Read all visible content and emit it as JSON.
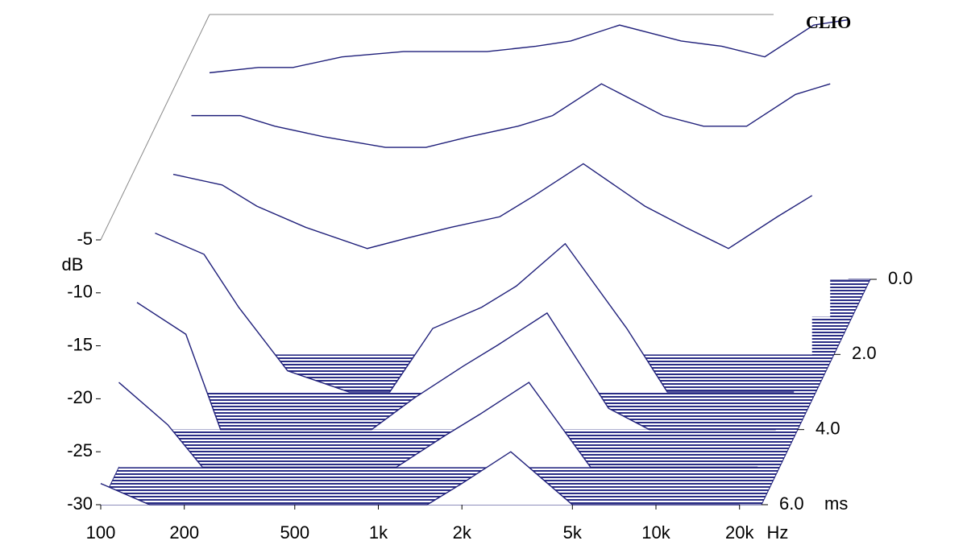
{
  "chart_data": {
    "type": "waterfall",
    "brand": "CLIO",
    "ylabel": "dB",
    "xlabel": "Hz",
    "zlabel": "ms",
    "log_x": true,
    "color": "#1f1f7a",
    "x": [
      100,
      150,
      200,
      300,
      500,
      700,
      1000,
      1500,
      2000,
      3000,
      5000,
      7000,
      10000,
      15000,
      20000
    ],
    "series": [
      {
        "t": 0,
        "values": [
          -10.5,
          -10,
          -10,
          -9,
          -8.5,
          -8.5,
          -8.5,
          -8,
          -7.5,
          -6,
          -7.5,
          -8,
          -9,
          -6,
          -5.5
        ]
      },
      {
        "t": 1,
        "values": [
          -11,
          -11,
          -12,
          -13,
          -14,
          -14,
          -13,
          -12,
          -11,
          -8,
          -11,
          -12,
          -12,
          -9,
          -8
        ]
      },
      {
        "t": 2,
        "values": [
          -13,
          -14,
          -16,
          -18,
          -20,
          -19,
          -18,
          -17,
          -15,
          -12,
          -16,
          -18,
          -20,
          -17,
          -15
        ]
      },
      {
        "t": 3,
        "values": [
          -15,
          -17,
          -22,
          -28,
          -30,
          -30,
          -24,
          -22,
          -20,
          -16,
          -24,
          -30,
          -30,
          -30,
          -30
        ]
      },
      {
        "t": 4,
        "values": [
          -18,
          -21,
          -30,
          -30,
          -30,
          -30,
          -27,
          -24,
          -22,
          -19,
          -28,
          -30,
          -30,
          -30,
          -30
        ]
      },
      {
        "t": 5,
        "values": [
          -22,
          -26,
          -30,
          -30,
          -30,
          -30,
          -30,
          -27,
          -25,
          -22,
          -30,
          -30,
          -30,
          -30,
          -30
        ]
      },
      {
        "t": 6,
        "values": [
          -28,
          -30,
          -30,
          -30,
          -30,
          -30,
          -30,
          -30,
          -28,
          -25,
          -30,
          -30,
          -30,
          -30,
          -30
        ]
      }
    ],
    "xlim": [
      100,
      24000
    ],
    "xticks": [
      100,
      200,
      500,
      {
        "value": 1000,
        "label": "1k"
      },
      {
        "value": 2000,
        "label": "2k"
      },
      {
        "value": 5000,
        "label": "5k"
      },
      {
        "value": 10000,
        "label": "10k"
      },
      {
        "value": 20000,
        "label": "20k"
      }
    ],
    "ylim": [
      -30,
      -5
    ],
    "yticks": [
      -30,
      -25,
      -20,
      -15,
      -10,
      -5
    ],
    "zlim": [
      0,
      6
    ],
    "zticks": [
      {
        "value": 0,
        "label": "0.0"
      },
      {
        "value": 2,
        "label": "2.0"
      },
      {
        "value": 4,
        "label": "4.0"
      },
      {
        "value": 6,
        "label": "6.0"
      }
    ]
  }
}
